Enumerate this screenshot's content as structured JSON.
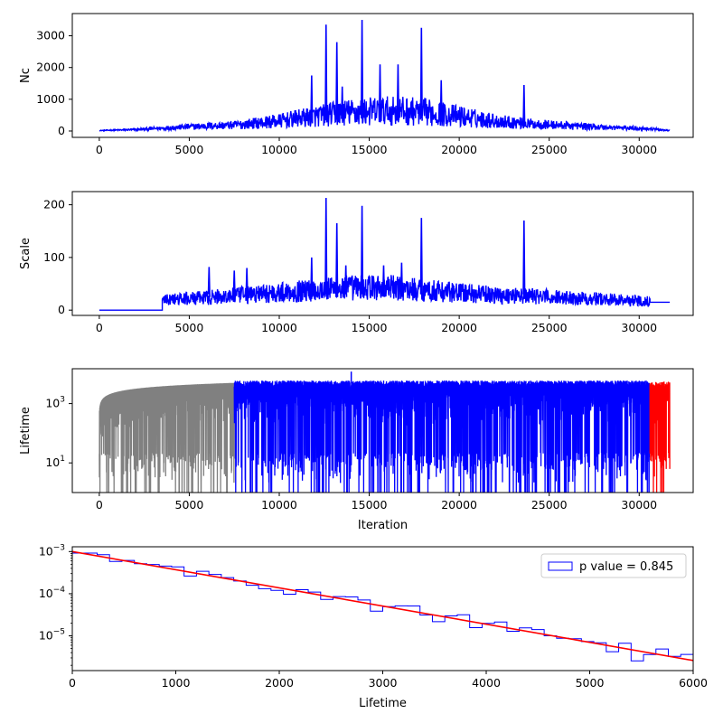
{
  "chart_data": [
    {
      "type": "line",
      "ylabel": "Nc",
      "xlabel": "",
      "xlim": [
        -1500,
        33000
      ],
      "ylim": [
        -200,
        3700
      ],
      "xticks": [
        "0",
        "5000",
        "10000",
        "15000",
        "20000",
        "25000",
        "30000"
      ],
      "yticks": [
        "0",
        "1000",
        "2000",
        "3000"
      ],
      "series_color": "#0000ff",
      "envelope": {
        "x": [
          0,
          2000,
          3500,
          5000,
          7500,
          10000,
          12000,
          13500,
          15000,
          16500,
          18000,
          20000,
          22000,
          24000,
          26000,
          28000,
          30500,
          31700
        ],
        "y": [
          20,
          60,
          120,
          180,
          250,
          420,
          620,
          760,
          820,
          850,
          800,
          620,
          420,
          300,
          230,
          160,
          100,
          20
        ]
      },
      "spikes": {
        "x": [
          12600,
          13200,
          14600,
          15600,
          16600,
          17900,
          23600,
          11800,
          13500,
          19000
        ],
        "y": [
          3350,
          2800,
          3500,
          2100,
          2100,
          3250,
          1450,
          1750,
          1400,
          1600
        ]
      }
    },
    {
      "type": "line",
      "ylabel": "Scale",
      "xlabel": "",
      "xlim": [
        -1500,
        33000
      ],
      "ylim": [
        -10,
        225
      ],
      "xticks": [
        "0",
        "5000",
        "10000",
        "15000",
        "20000",
        "25000",
        "30000"
      ],
      "yticks": [
        "0",
        "100",
        "200"
      ],
      "series_color": "#0000ff",
      "flat_segment": {
        "x": [
          0,
          3500
        ],
        "y": [
          0,
          0
        ]
      },
      "step_start": {
        "x": 3500,
        "y": 20
      },
      "tail": {
        "x": [
          30600,
          31700
        ],
        "y": [
          15,
          15
        ]
      },
      "envelope": {
        "x": [
          3500,
          6000,
          8000,
          10000,
          12000,
          14000,
          16000,
          18000,
          20000,
          22000,
          24000,
          26000,
          28000,
          30600
        ],
        "y": [
          20,
          25,
          30,
          35,
          40,
          45,
          45,
          40,
          35,
          30,
          28,
          25,
          22,
          18
        ]
      },
      "spikes": {
        "x": [
          12600,
          13200,
          14600,
          17900,
          23600,
          6100,
          7500,
          11800,
          13700,
          16800,
          15800,
          8200
        ],
        "y": [
          213,
          165,
          198,
          175,
          170,
          82,
          75,
          100,
          85,
          90,
          85,
          80
        ]
      }
    },
    {
      "type": "line",
      "ylabel": "Lifetime",
      "xlabel": "Iteration",
      "yscale": "log",
      "xlim": [
        -1500,
        33000
      ],
      "ylim": [
        1,
        15000
      ],
      "xticks": [
        "0",
        "5000",
        "10000",
        "15000",
        "20000",
        "25000",
        "30000"
      ],
      "yticks": [
        "10^1",
        "10^3"
      ],
      "segments": [
        {
          "x_start": 0,
          "x_end": 7500,
          "color": "#808080",
          "kind": "burn-in"
        },
        {
          "x_start": 7500,
          "x_end": 30600,
          "color": "#0000ff",
          "kind": "main"
        },
        {
          "x_start": 30600,
          "x_end": 31700,
          "color": "#ff0000",
          "kind": "tail"
        }
      ],
      "upper_level": 5000,
      "peak": {
        "x": 14000,
        "y": 12000
      }
    },
    {
      "type": "histogram",
      "xlabel": "Lifetime",
      "ylabel": "",
      "yscale": "log",
      "xlim": [
        0,
        6000
      ],
      "ylim": [
        1.5e-06,
        0.0013
      ],
      "xticks": [
        "0",
        "1000",
        "2000",
        "3000",
        "4000",
        "5000",
        "6000"
      ],
      "yticks": [
        "10^-5",
        "10^-4",
        "10^-3"
      ],
      "bin_width": 120,
      "fit_line": {
        "x": [
          0,
          6000
        ],
        "y": [
          0.001,
          2.6e-06
        ],
        "color": "#ff0000"
      },
      "hist_color": "#0000ff",
      "legend": {
        "label": "p value = 0.845",
        "position": "top-right"
      }
    }
  ]
}
